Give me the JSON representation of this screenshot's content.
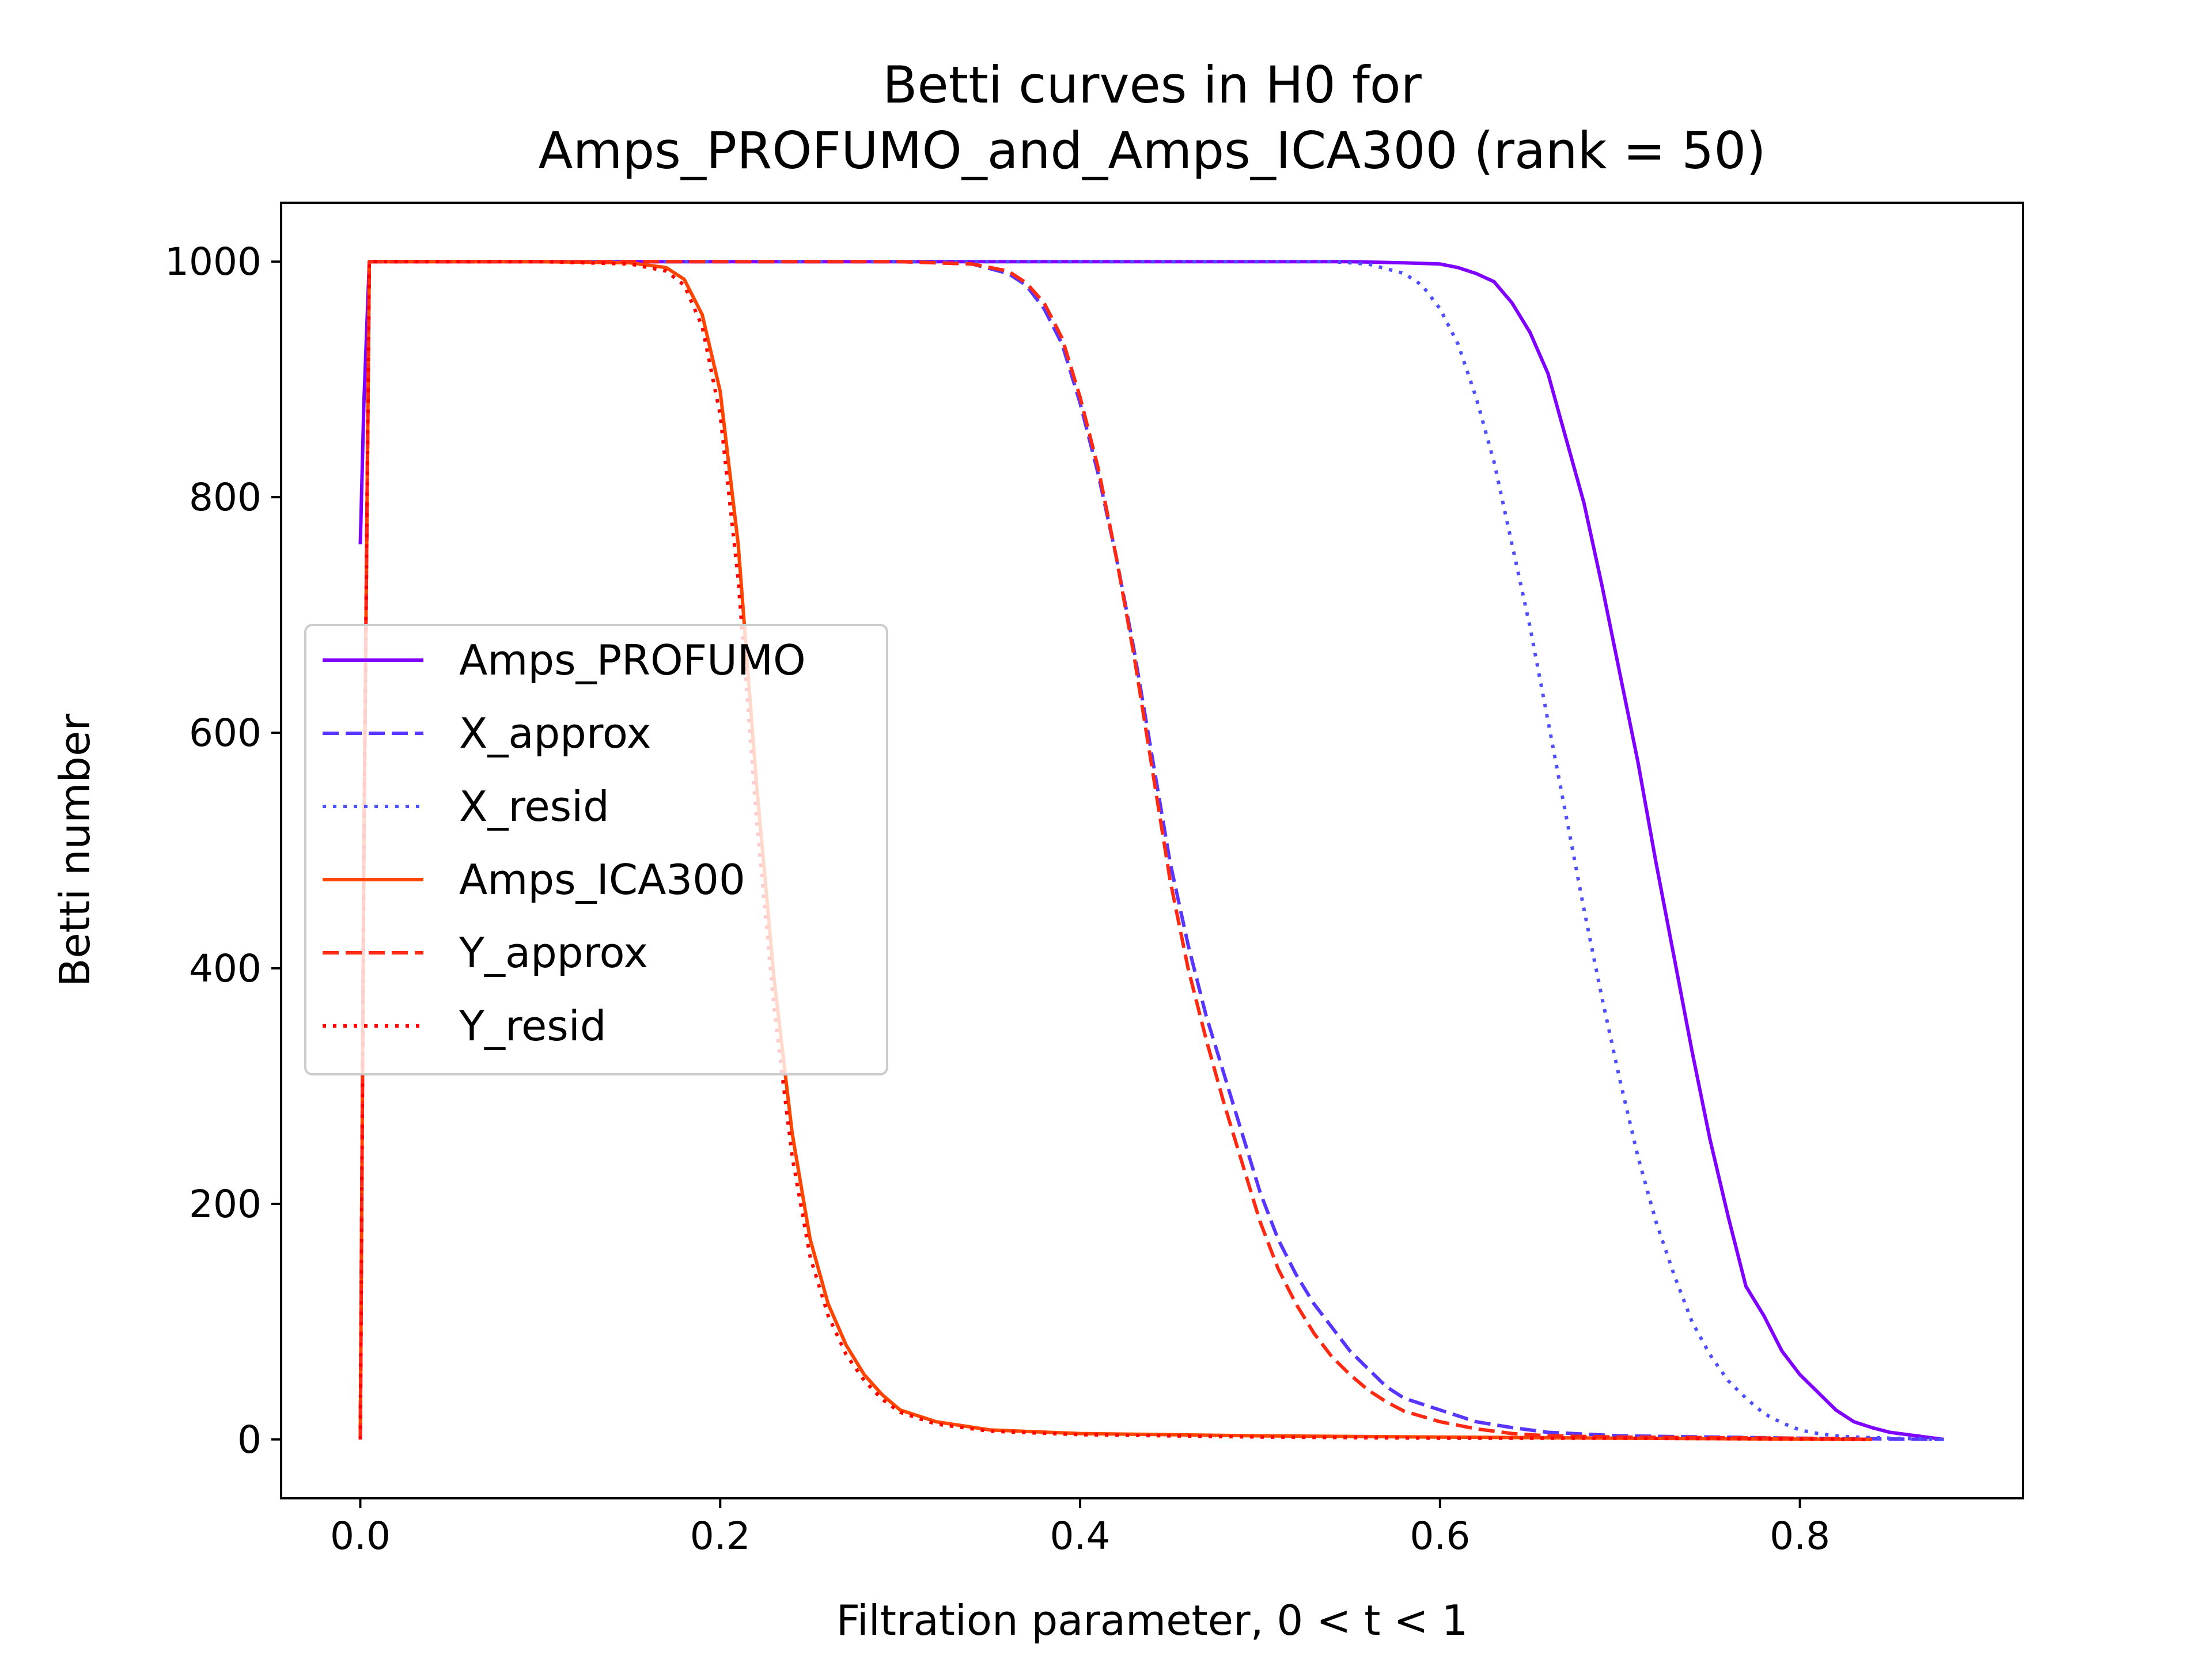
{
  "chart_data": {
    "type": "line",
    "title": [
      "Betti curves in H0 for",
      "Amps_PROFUMO_and_Amps_ICA300 (rank = 50)"
    ],
    "xlabel": "Filtration parameter, 0 < t < 1",
    "ylabel": "Betti number",
    "xlim": [
      -0.044,
      0.924
    ],
    "ylim": [
      -50,
      1050
    ],
    "xticks": [
      0.0,
      0.2,
      0.4,
      0.6,
      0.8
    ],
    "xtick_labels": [
      "0.0",
      "0.2",
      "0.4",
      "0.6",
      "0.8"
    ],
    "yticks": [
      0,
      200,
      400,
      600,
      800,
      1000
    ],
    "ytick_labels": [
      "0",
      "200",
      "400",
      "600",
      "800",
      "1000"
    ],
    "grid": false,
    "legend_position": "center-left",
    "series": [
      {
        "name": "Amps_PROFUMO",
        "color": "#7f00ff",
        "style": "solid",
        "x": [
          0.0,
          0.002,
          0.005,
          0.1,
          0.2,
          0.3,
          0.4,
          0.5,
          0.55,
          0.58,
          0.6,
          0.61,
          0.62,
          0.63,
          0.64,
          0.65,
          0.66,
          0.67,
          0.68,
          0.69,
          0.7,
          0.71,
          0.72,
          0.73,
          0.74,
          0.75,
          0.76,
          0.77,
          0.78,
          0.79,
          0.8,
          0.81,
          0.82,
          0.83,
          0.84,
          0.85,
          0.86,
          0.87,
          0.88
        ],
        "y": [
          760,
          880,
          1000,
          1000,
          1000,
          1000,
          1000,
          1000,
          1000,
          999,
          998,
          995,
          990,
          983,
          965,
          940,
          905,
          850,
          795,
          725,
          650,
          575,
          490,
          410,
          330,
          255,
          190,
          130,
          105,
          75,
          55,
          40,
          25,
          15,
          10,
          6,
          4,
          2,
          0
        ]
      },
      {
        "name": "X_approx",
        "color": "#5a35ff",
        "style": "dashed",
        "x": [
          0.0,
          0.002,
          0.005,
          0.1,
          0.2,
          0.3,
          0.34,
          0.36,
          0.37,
          0.38,
          0.39,
          0.4,
          0.41,
          0.42,
          0.43,
          0.44,
          0.45,
          0.46,
          0.47,
          0.48,
          0.49,
          0.5,
          0.51,
          0.52,
          0.53,
          0.54,
          0.55,
          0.56,
          0.57,
          0.58,
          0.6,
          0.62,
          0.64,
          0.66,
          0.7,
          0.8,
          0.88
        ],
        "y": [
          0,
          500,
          1000,
          1000,
          1000,
          1000,
          998,
          990,
          980,
          960,
          930,
          880,
          820,
          750,
          670,
          580,
          490,
          420,
          360,
          310,
          260,
          210,
          170,
          140,
          115,
          95,
          75,
          60,
          45,
          35,
          25,
          15,
          10,
          6,
          3,
          1,
          0
        ]
      },
      {
        "name": "X_resid",
        "color": "#4f4ffe",
        "style": "dotted",
        "x": [
          0.0,
          0.002,
          0.005,
          0.1,
          0.2,
          0.3,
          0.4,
          0.5,
          0.54,
          0.56,
          0.58,
          0.59,
          0.6,
          0.61,
          0.62,
          0.63,
          0.64,
          0.65,
          0.66,
          0.67,
          0.68,
          0.69,
          0.7,
          0.71,
          0.72,
          0.73,
          0.74,
          0.75,
          0.76,
          0.77,
          0.78,
          0.79,
          0.8,
          0.81,
          0.82,
          0.83,
          0.85,
          0.88
        ],
        "y": [
          0,
          500,
          1000,
          1000,
          1000,
          1000,
          1000,
          1000,
          1000,
          998,
          990,
          980,
          960,
          930,
          885,
          830,
          760,
          690,
          610,
          530,
          450,
          375,
          305,
          240,
          185,
          140,
          100,
          72,
          50,
          35,
          22,
          14,
          8,
          5,
          3,
          2,
          1,
          0
        ]
      },
      {
        "name": "Amps_ICA300",
        "color": "#ff4500",
        "style": "solid",
        "x": [
          0.0,
          0.002,
          0.005,
          0.1,
          0.15,
          0.17,
          0.18,
          0.19,
          0.2,
          0.21,
          0.22,
          0.23,
          0.24,
          0.25,
          0.26,
          0.27,
          0.28,
          0.29,
          0.3,
          0.32,
          0.35,
          0.4,
          0.5,
          0.6,
          0.7,
          0.84
        ],
        "y": [
          0,
          500,
          1000,
          1000,
          999,
          995,
          985,
          955,
          890,
          760,
          560,
          390,
          260,
          170,
          115,
          80,
          55,
          38,
          25,
          15,
          8,
          5,
          3,
          2,
          1,
          0
        ]
      },
      {
        "name": "Y_approx",
        "color": "#ff2a14",
        "style": "dashed",
        "x": [
          0.0,
          0.002,
          0.005,
          0.1,
          0.2,
          0.3,
          0.34,
          0.36,
          0.37,
          0.38,
          0.39,
          0.4,
          0.41,
          0.42,
          0.43,
          0.44,
          0.45,
          0.46,
          0.47,
          0.48,
          0.49,
          0.5,
          0.51,
          0.52,
          0.53,
          0.54,
          0.55,
          0.56,
          0.57,
          0.58,
          0.6,
          0.62,
          0.64,
          0.66,
          0.7,
          0.8,
          0.84
        ],
        "y": [
          0,
          500,
          1000,
          1000,
          1000,
          1000,
          998,
          992,
          982,
          965,
          935,
          885,
          825,
          750,
          665,
          570,
          475,
          400,
          340,
          285,
          235,
          185,
          145,
          115,
          90,
          70,
          55,
          42,
          32,
          24,
          15,
          9,
          5,
          3,
          2,
          1,
          0
        ]
      },
      {
        "name": "Y_resid",
        "color": "#ff0000",
        "style": "dotted",
        "x": [
          0.0,
          0.002,
          0.005,
          0.1,
          0.15,
          0.17,
          0.18,
          0.19,
          0.2,
          0.21,
          0.22,
          0.23,
          0.24,
          0.25,
          0.26,
          0.27,
          0.28,
          0.29,
          0.3,
          0.32,
          0.35,
          0.4,
          0.5,
          0.6,
          0.7,
          0.84
        ],
        "y": [
          0,
          500,
          1000,
          1000,
          998,
          992,
          980,
          945,
          870,
          730,
          530,
          365,
          240,
          155,
          105,
          72,
          50,
          34,
          23,
          13,
          7,
          4,
          2,
          1,
          1,
          0
        ]
      }
    ]
  }
}
